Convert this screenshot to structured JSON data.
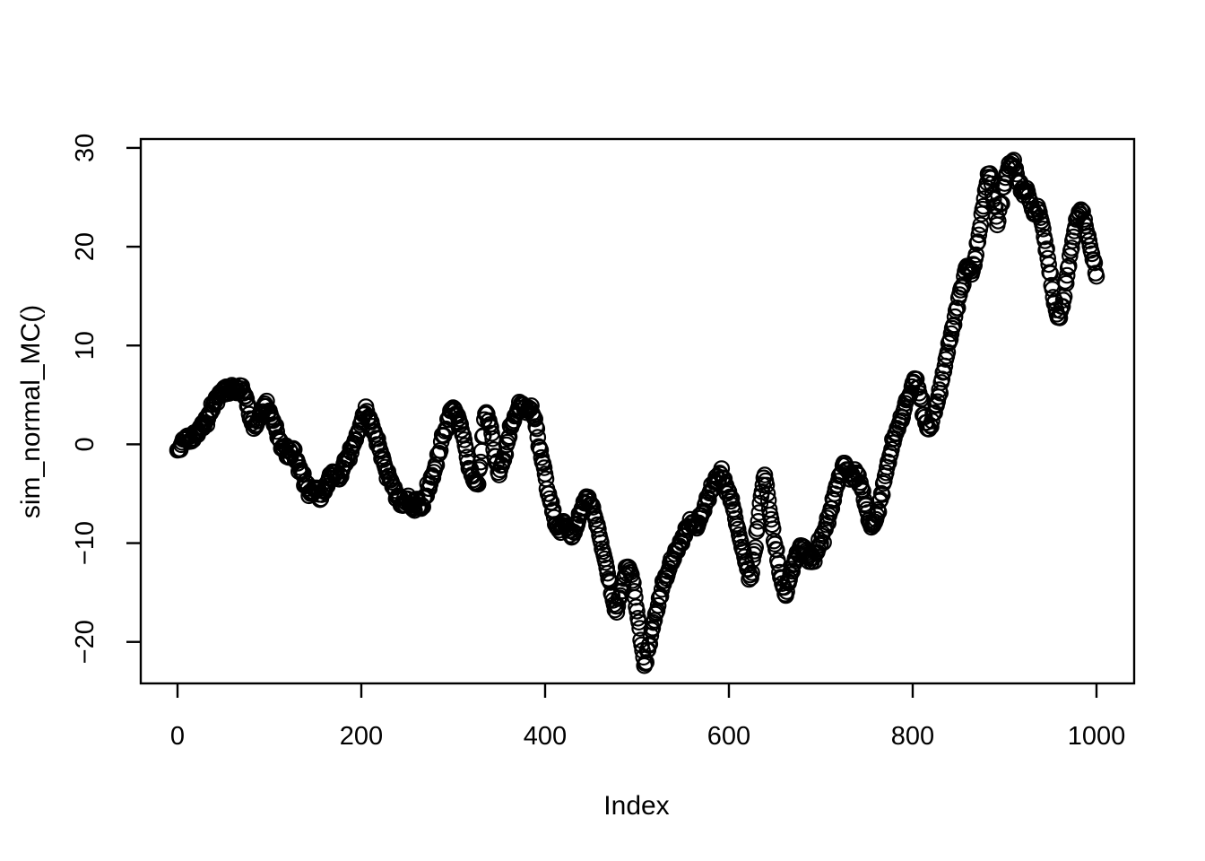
{
  "chart_data": {
    "type": "scatter",
    "title": "",
    "xlabel": "Index",
    "ylabel": "sim_normal_MC()",
    "marker": "open-circle",
    "marker_color": "#000000",
    "background": "#ffffff",
    "grid": false,
    "legend": null,
    "x_ticks": [
      0,
      200,
      400,
      600,
      800,
      1000
    ],
    "y_ticks": [
      -20,
      -10,
      0,
      10,
      20,
      30
    ],
    "xlim": [
      -40,
      1041
    ],
    "ylim": [
      -24.2,
      30.9
    ],
    "n_points": 1001,
    "x_step": 1,
    "description": "Random-walk style simulation output (cumulative sum), plotted as open circles vs Index",
    "series": [
      {
        "name": "sim_normal_MC()",
        "waypoints": [
          [
            0,
            -0.6
          ],
          [
            5,
            0.2
          ],
          [
            10,
            0.8
          ],
          [
            15,
            0.3
          ],
          [
            20,
            1.2
          ],
          [
            25,
            1.8
          ],
          [
            30,
            2.2
          ],
          [
            35,
            3.2
          ],
          [
            40,
            4.2
          ],
          [
            45,
            5.0
          ],
          [
            50,
            5.5
          ],
          [
            55,
            5.2
          ],
          [
            60,
            5.8
          ],
          [
            65,
            5.4
          ],
          [
            70,
            5.9
          ],
          [
            75,
            4.6
          ],
          [
            80,
            2.6
          ],
          [
            85,
            1.8
          ],
          [
            90,
            3.0
          ],
          [
            95,
            4.1
          ],
          [
            100,
            3.4
          ],
          [
            105,
            2.0
          ],
          [
            110,
            0.6
          ],
          [
            115,
            -0.4
          ],
          [
            120,
            -1.2
          ],
          [
            125,
            -0.5
          ],
          [
            130,
            -1.6
          ],
          [
            135,
            -2.8
          ],
          [
            140,
            -4.2
          ],
          [
            145,
            -5.0
          ],
          [
            150,
            -4.4
          ],
          [
            155,
            -5.6
          ],
          [
            160,
            -4.8
          ],
          [
            165,
            -3.4
          ],
          [
            170,
            -2.8
          ],
          [
            175,
            -3.5
          ],
          [
            180,
            -2.4
          ],
          [
            185,
            -1.5
          ],
          [
            190,
            -0.3
          ],
          [
            195,
            1.0
          ],
          [
            200,
            2.2
          ],
          [
            205,
            3.8
          ],
          [
            210,
            2.4
          ],
          [
            215,
            1.0
          ],
          [
            220,
            -0.5
          ],
          [
            225,
            -2.0
          ],
          [
            230,
            -3.2
          ],
          [
            235,
            -4.3
          ],
          [
            240,
            -5.3
          ],
          [
            245,
            -6.2
          ],
          [
            250,
            -5.5
          ],
          [
            255,
            -6.4
          ],
          [
            260,
            -5.7
          ],
          [
            265,
            -6.5
          ],
          [
            270,
            -5.3
          ],
          [
            275,
            -4.0
          ],
          [
            280,
            -2.5
          ],
          [
            285,
            -0.9
          ],
          [
            290,
            0.9
          ],
          [
            295,
            2.5
          ],
          [
            300,
            3.7
          ],
          [
            305,
            2.9
          ],
          [
            310,
            1.0
          ],
          [
            315,
            -1.3
          ],
          [
            320,
            -3.1
          ],
          [
            325,
            -4.0
          ],
          [
            330,
            -1.8
          ],
          [
            335,
            3.1
          ],
          [
            340,
            2.0
          ],
          [
            345,
            -1.2
          ],
          [
            350,
            -3.1
          ],
          [
            355,
            -1.6
          ],
          [
            360,
            0.6
          ],
          [
            365,
            2.2
          ],
          [
            370,
            3.4
          ],
          [
            375,
            4.1
          ],
          [
            380,
            3.2
          ],
          [
            385,
            3.9
          ],
          [
            390,
            1.8
          ],
          [
            395,
            -0.6
          ],
          [
            400,
            -3.0
          ],
          [
            405,
            -5.5
          ],
          [
            410,
            -7.4
          ],
          [
            415,
            -8.7
          ],
          [
            420,
            -7.8
          ],
          [
            425,
            -8.5
          ],
          [
            430,
            -9.3
          ],
          [
            435,
            -8.1
          ],
          [
            440,
            -6.5
          ],
          [
            445,
            -5.3
          ],
          [
            450,
            -6.1
          ],
          [
            455,
            -7.6
          ],
          [
            460,
            -9.6
          ],
          [
            465,
            -11.6
          ],
          [
            470,
            -13.8
          ],
          [
            475,
            -16.2
          ],
          [
            478,
            -17.0
          ],
          [
            482,
            -15.3
          ],
          [
            486,
            -13.6
          ],
          [
            490,
            -12.4
          ],
          [
            494,
            -13.2
          ],
          [
            498,
            -15.5
          ],
          [
            502,
            -18.0
          ],
          [
            505,
            -20.3
          ],
          [
            508,
            -22.4
          ],
          [
            512,
            -20.8
          ],
          [
            516,
            -18.8
          ],
          [
            520,
            -17.2
          ],
          [
            525,
            -15.4
          ],
          [
            530,
            -13.8
          ],
          [
            535,
            -12.6
          ],
          [
            540,
            -11.6
          ],
          [
            545,
            -10.4
          ],
          [
            550,
            -9.3
          ],
          [
            555,
            -8.3
          ],
          [
            560,
            -7.9
          ],
          [
            565,
            -8.5
          ],
          [
            570,
            -7.2
          ],
          [
            575,
            -5.9
          ],
          [
            580,
            -4.7
          ],
          [
            585,
            -3.7
          ],
          [
            590,
            -2.9
          ],
          [
            595,
            -3.5
          ],
          [
            600,
            -4.8
          ],
          [
            605,
            -6.6
          ],
          [
            610,
            -8.6
          ],
          [
            615,
            -10.7
          ],
          [
            620,
            -12.6
          ],
          [
            624,
            -13.5
          ],
          [
            628,
            -10.8
          ],
          [
            632,
            -7.8
          ],
          [
            636,
            -4.8
          ],
          [
            639,
            -3.1
          ],
          [
            642,
            -5.0
          ],
          [
            646,
            -7.6
          ],
          [
            650,
            -10.1
          ],
          [
            654,
            -12.1
          ],
          [
            658,
            -14.1
          ],
          [
            662,
            -15.3
          ],
          [
            666,
            -13.7
          ],
          [
            670,
            -12.2
          ],
          [
            675,
            -11.0
          ],
          [
            680,
            -10.3
          ],
          [
            685,
            -11.2
          ],
          [
            690,
            -11.9
          ],
          [
            695,
            -11.0
          ],
          [
            700,
            -10.0
          ],
          [
            705,
            -8.6
          ],
          [
            710,
            -6.9
          ],
          [
            715,
            -5.0
          ],
          [
            720,
            -3.2
          ],
          [
            725,
            -1.9
          ],
          [
            730,
            -2.6
          ],
          [
            735,
            -3.4
          ],
          [
            740,
            -3.0
          ],
          [
            745,
            -4.6
          ],
          [
            750,
            -6.6
          ],
          [
            755,
            -8.4
          ],
          [
            760,
            -7.6
          ],
          [
            765,
            -5.6
          ],
          [
            770,
            -3.2
          ],
          [
            775,
            -1.2
          ],
          [
            780,
            0.6
          ],
          [
            785,
            2.0
          ],
          [
            790,
            3.3
          ],
          [
            795,
            4.7
          ],
          [
            800,
            6.2
          ],
          [
            804,
            6.6
          ],
          [
            808,
            4.8
          ],
          [
            812,
            3.0
          ],
          [
            816,
            1.6
          ],
          [
            820,
            1.8
          ],
          [
            824,
            3.2
          ],
          [
            828,
            4.8
          ],
          [
            832,
            6.6
          ],
          [
            836,
            8.6
          ],
          [
            840,
            10.4
          ],
          [
            844,
            12.0
          ],
          [
            848,
            13.8
          ],
          [
            852,
            15.6
          ],
          [
            856,
            17.0
          ],
          [
            860,
            17.8
          ],
          [
            864,
            17.2
          ],
          [
            868,
            18.8
          ],
          [
            872,
            21.2
          ],
          [
            876,
            23.8
          ],
          [
            880,
            26.0
          ],
          [
            884,
            27.4
          ],
          [
            888,
            24.8
          ],
          [
            892,
            22.2
          ],
          [
            896,
            24.4
          ],
          [
            900,
            26.4
          ],
          [
            904,
            27.9
          ],
          [
            908,
            28.6
          ],
          [
            912,
            27.9
          ],
          [
            916,
            26.6
          ],
          [
            920,
            25.6
          ],
          [
            924,
            25.9
          ],
          [
            928,
            24.6
          ],
          [
            932,
            23.3
          ],
          [
            936,
            24.1
          ],
          [
            940,
            22.6
          ],
          [
            944,
            20.6
          ],
          [
            948,
            18.2
          ],
          [
            952,
            15.7
          ],
          [
            956,
            13.6
          ],
          [
            960,
            12.8
          ],
          [
            964,
            14.6
          ],
          [
            968,
            17.1
          ],
          [
            972,
            19.6
          ],
          [
            976,
            21.6
          ],
          [
            980,
            23.1
          ],
          [
            984,
            23.6
          ],
          [
            988,
            22.1
          ],
          [
            992,
            20.6
          ],
          [
            996,
            18.7
          ],
          [
            1000,
            17.0
          ]
        ]
      }
    ]
  }
}
